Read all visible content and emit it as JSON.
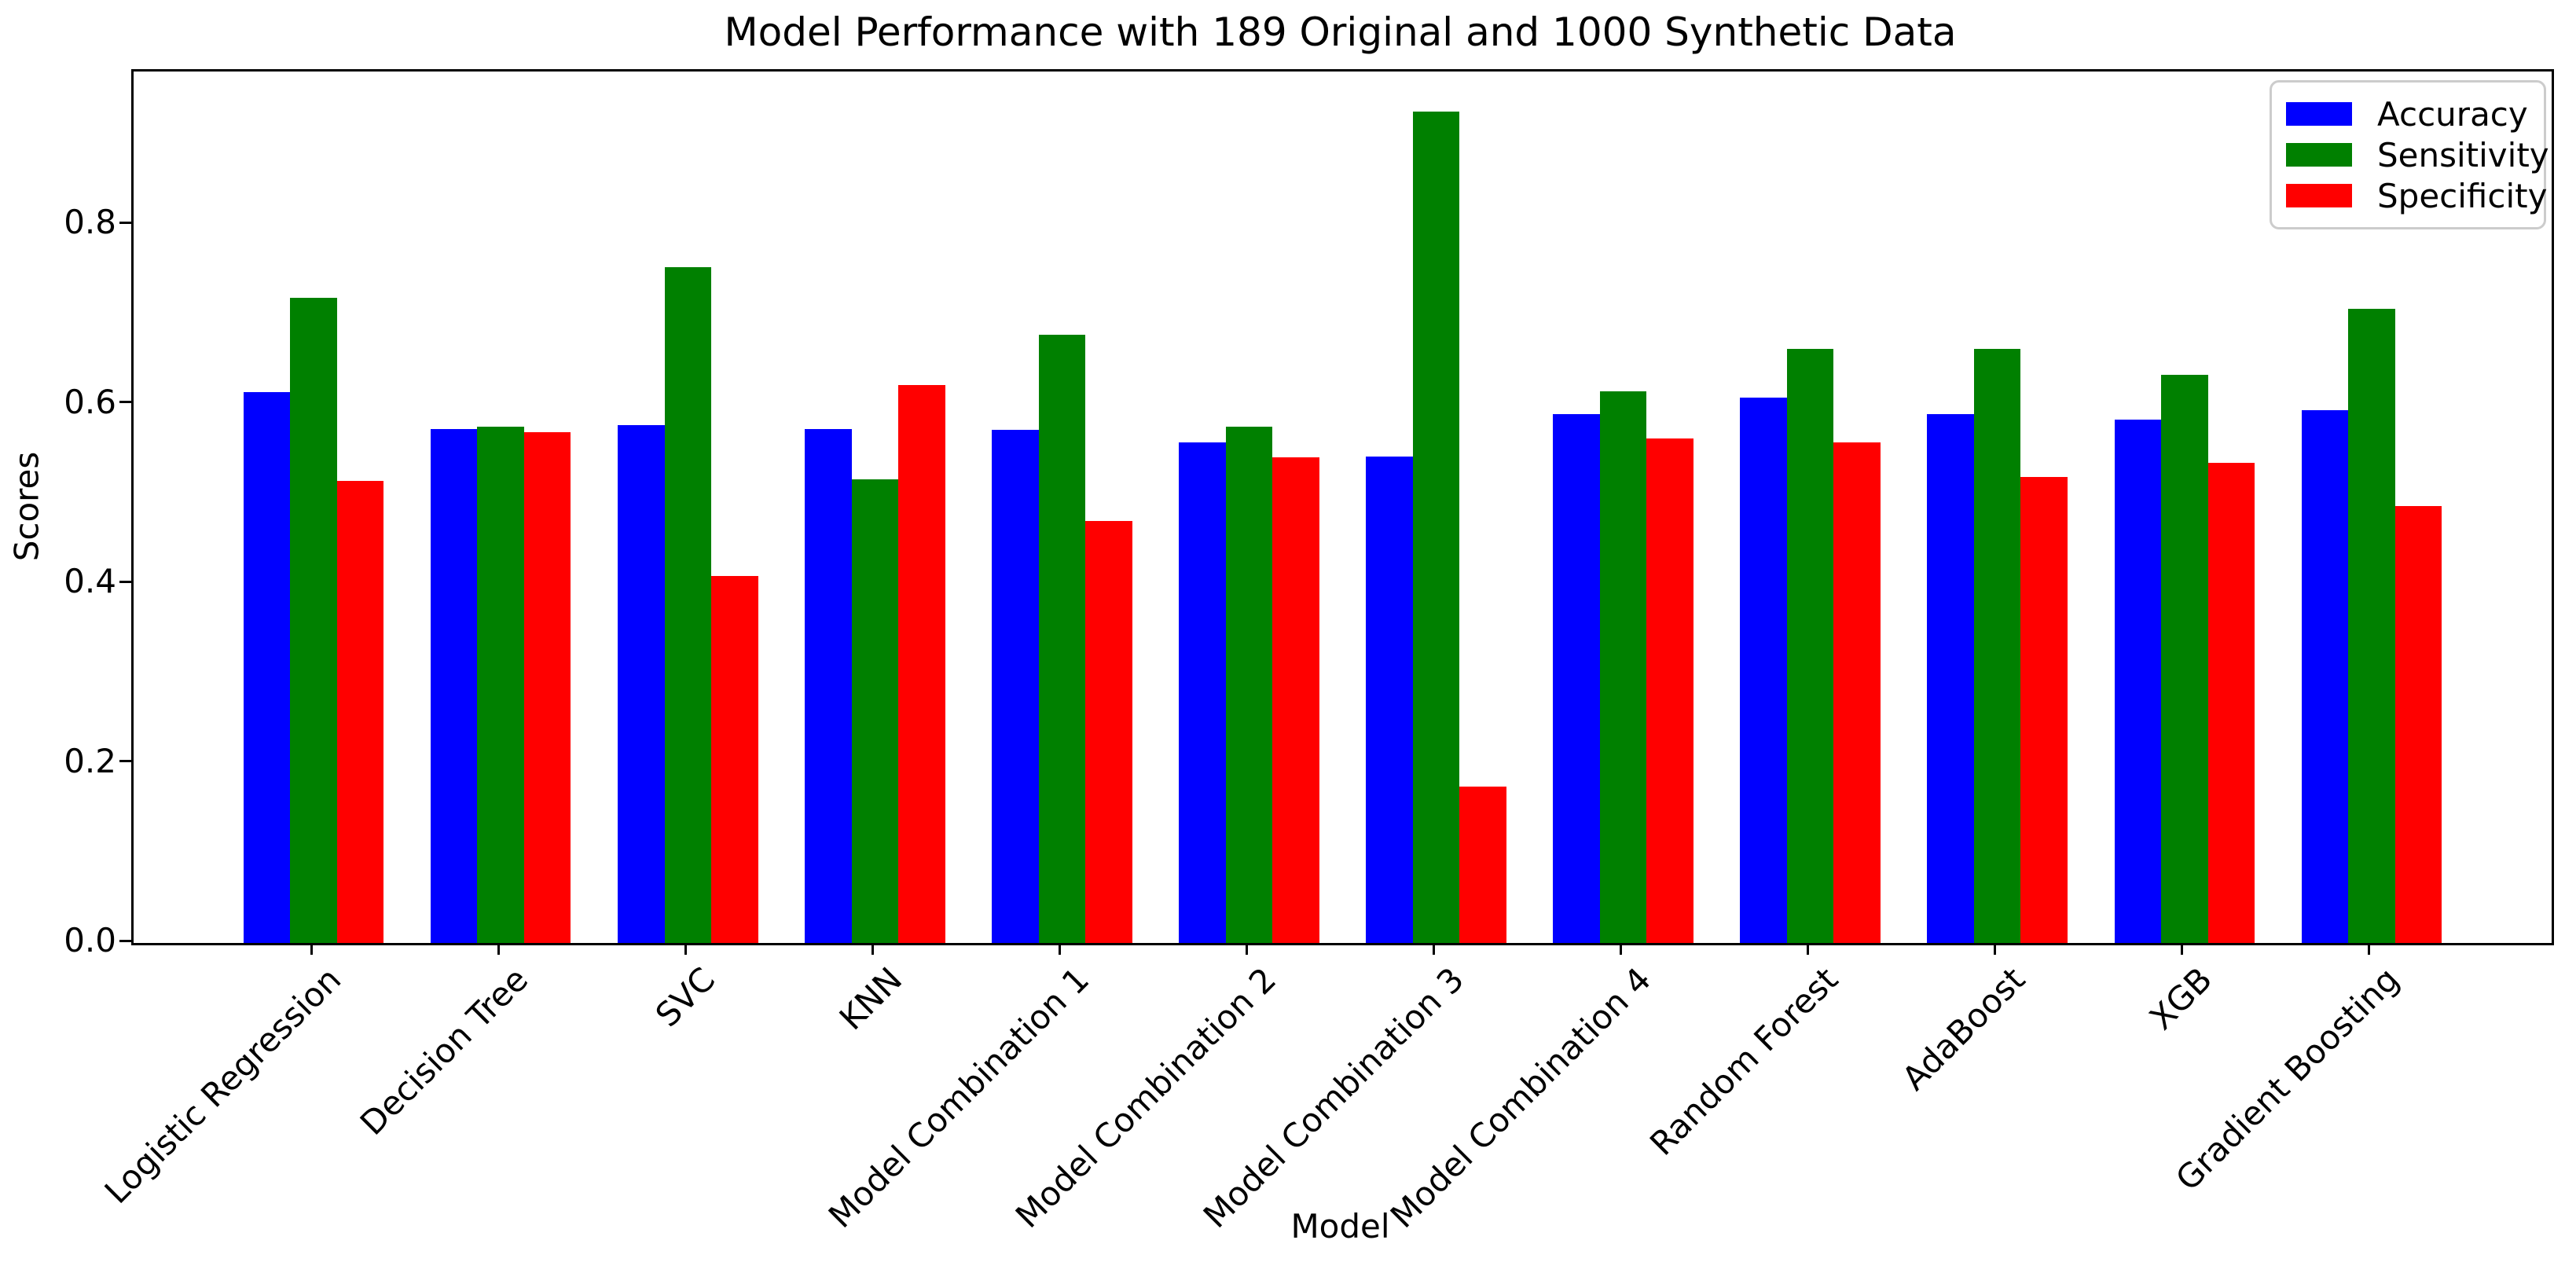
{
  "chart_data": {
    "type": "bar",
    "title": "Model Performance with 189 Original and 1000 Synthetic Data",
    "xlabel": "Model",
    "ylabel": "Scores",
    "categories": [
      "Logistic Regression",
      "Decision Tree",
      "SVC",
      "KNN",
      "Model Combination 1",
      "Model Combination 2",
      "Model Combination 3",
      "Model Combination 4",
      "Random Forest",
      "AdaBoost",
      "XGB",
      "Gradient Boosting"
    ],
    "series": [
      {
        "name": "Accuracy",
        "color": "#0000ff",
        "values": [
          0.614,
          0.573,
          0.577,
          0.573,
          0.572,
          0.558,
          0.542,
          0.589,
          0.608,
          0.589,
          0.583,
          0.594
        ]
      },
      {
        "name": "Sensitivity",
        "color": "#008000",
        "values": [
          0.719,
          0.575,
          0.753,
          0.517,
          0.678,
          0.575,
          0.926,
          0.615,
          0.662,
          0.662,
          0.633,
          0.707
        ]
      },
      {
        "name": "Specificity",
        "color": "#ff0000",
        "values": [
          0.515,
          0.569,
          0.409,
          0.622,
          0.47,
          0.541,
          0.174,
          0.562,
          0.558,
          0.519,
          0.535,
          0.487
        ]
      }
    ],
    "ylim": [
      0,
      0.971
    ],
    "yticks": [
      "0.0",
      "0.2",
      "0.4",
      "0.6",
      "0.8"
    ],
    "ytick_values": [
      0.0,
      0.2,
      0.4,
      0.6,
      0.8
    ],
    "xlim": [
      -0.9625,
      11.9625
    ],
    "bar_width": 0.25,
    "legend_position": "upper right",
    "grid": false
  },
  "colors": {
    "background": "#ffffff",
    "text": "#000000",
    "spine": "#000000",
    "legend_border": "#cccccc"
  }
}
